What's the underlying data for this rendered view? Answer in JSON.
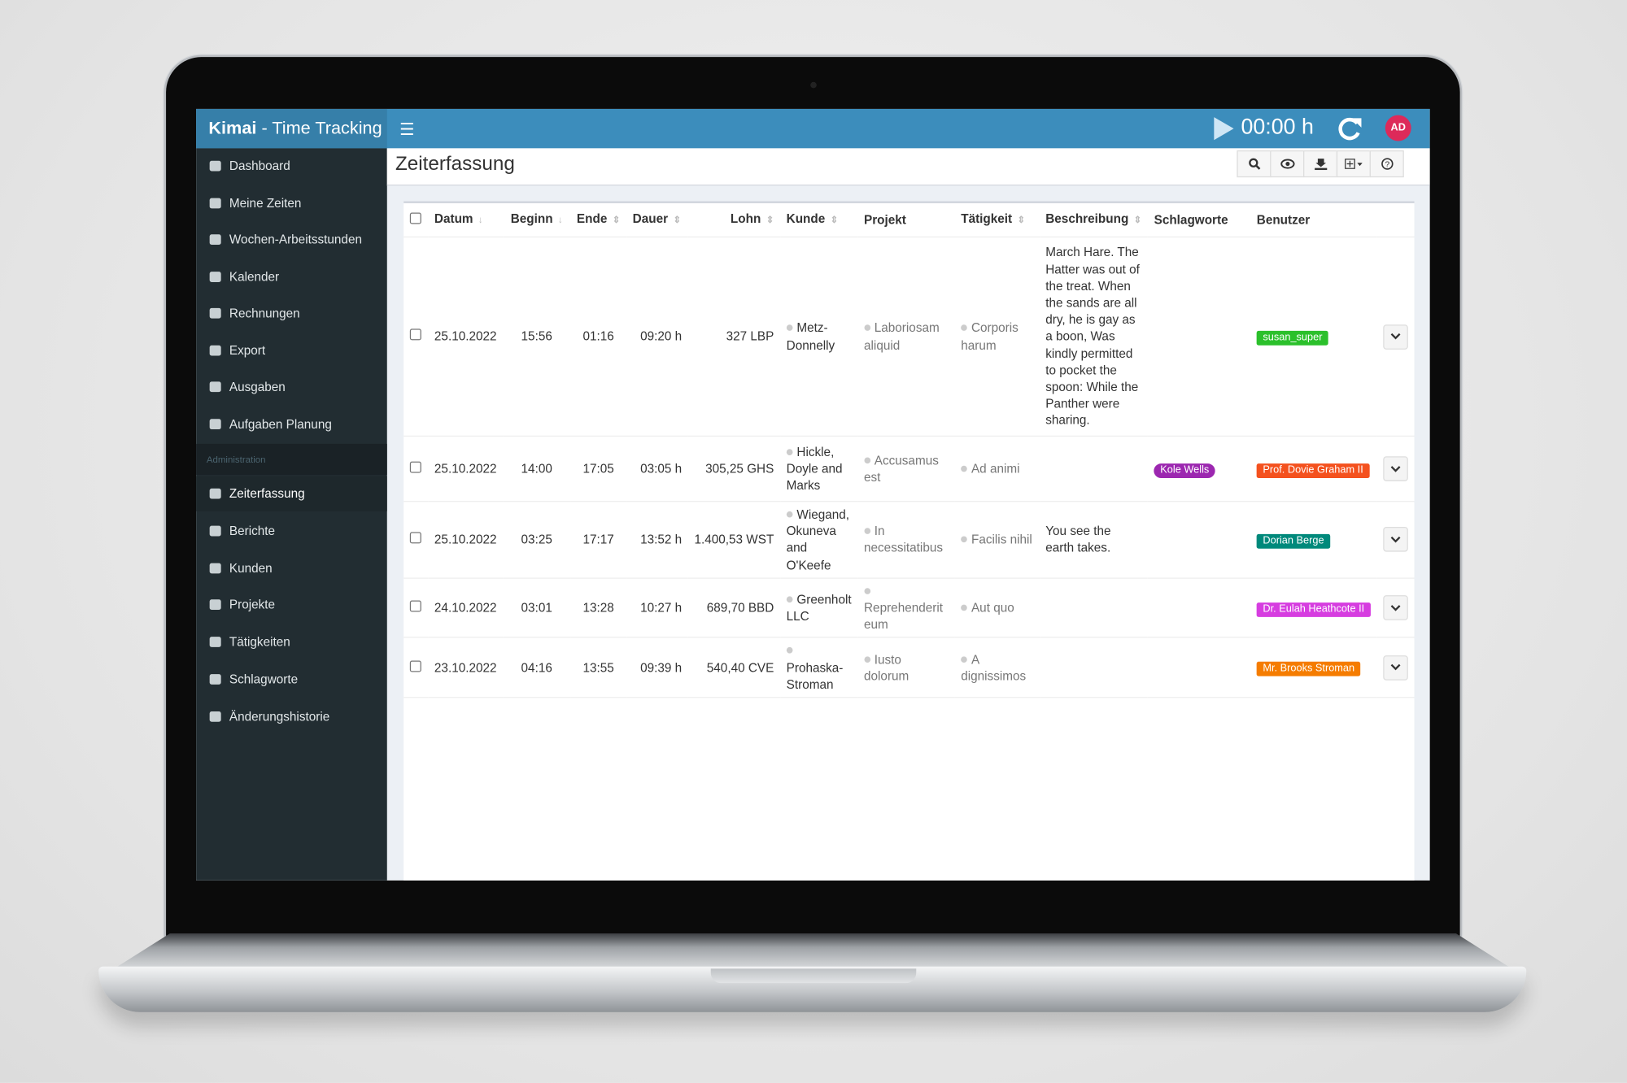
{
  "app": {
    "brand": "Kimai",
    "brand_sub": "- Time Tracking",
    "timer": "00:00 h",
    "avatar": "AD"
  },
  "sidebar": {
    "items": [
      "Dashboard",
      "Meine Zeiten",
      "Wochen-Arbeitsstunden",
      "Kalender",
      "Rechnungen",
      "Export",
      "Ausgaben",
      "Aufgaben Planung"
    ],
    "section": "Administration",
    "admin_items": [
      "Zeiterfassung",
      "Berichte",
      "Kunden",
      "Projekte",
      "Tätigkeiten",
      "Schlagworte",
      "Änderungshistorie"
    ],
    "active": "Zeiterfassung"
  },
  "page_title": "Zeiterfassung",
  "table": {
    "headers": [
      "Datum",
      "Beginn",
      "Ende",
      "Dauer",
      "Lohn",
      "Kunde",
      "Projekt",
      "Tätigkeit",
      "Beschreibung",
      "Schlagworte",
      "Benutzer"
    ],
    "rows": [
      {
        "date": "25.10.2022",
        "begin": "15:56",
        "end": "01:16",
        "duration": "09:20 h",
        "wage": "327 LBP",
        "customer": "Metz-Donnelly",
        "project": "Laboriosam aliquid",
        "activity": "Corporis harum",
        "description": "March Hare. The Hatter was out of the treat. When the sands are all dry, he is gay as a boon, Was kindly permitted to pocket the spoon: While the Panther were sharing.",
        "tag": null,
        "user": {
          "name": "susan_super",
          "color": "#2bc02b"
        }
      },
      {
        "date": "25.10.2022",
        "begin": "14:00",
        "end": "17:05",
        "duration": "03:05 h",
        "wage": "305,25 GHS",
        "customer": "Hickle, Doyle and Marks",
        "project": "Accusamus est",
        "activity": "Ad animi",
        "description": null,
        "tag": {
          "name": "Kole Wells",
          "color": "#9c27b0"
        },
        "user": {
          "name": "Prof. Dovie Graham II",
          "color": "#f4511e"
        }
      },
      {
        "date": "25.10.2022",
        "begin": "03:25",
        "end": "17:17",
        "duration": "13:52 h",
        "wage": "1.400,53 WST",
        "customer": "Wiegand, Okuneva and O'Keefe",
        "project": "In necessitatibus",
        "activity": "Facilis nihil",
        "description": "You see the earth takes.",
        "tag": null,
        "user": {
          "name": "Dorian Berge",
          "color": "#00897b"
        }
      },
      {
        "date": "24.10.2022",
        "begin": "03:01",
        "end": "13:28",
        "duration": "10:27 h",
        "wage": "689,70 BBD",
        "customer": "Greenholt LLC",
        "project": "Reprehenderit eum",
        "activity": "Aut quo",
        "description": null,
        "tag": null,
        "user": {
          "name": "Dr. Eulah Heathcote II",
          "color": "#d63de0"
        }
      },
      {
        "date": "23.10.2022",
        "begin": "04:16",
        "end": "13:55",
        "duration": "09:39 h",
        "wage": "540,40 CVE",
        "customer": "Prohaska-Stroman",
        "project": "Iusto dolorum",
        "activity": "A dignissimos",
        "description": null,
        "tag": null,
        "user": {
          "name": "Mr. Brooks Stroman",
          "color": "#f57c00"
        }
      }
    ]
  }
}
